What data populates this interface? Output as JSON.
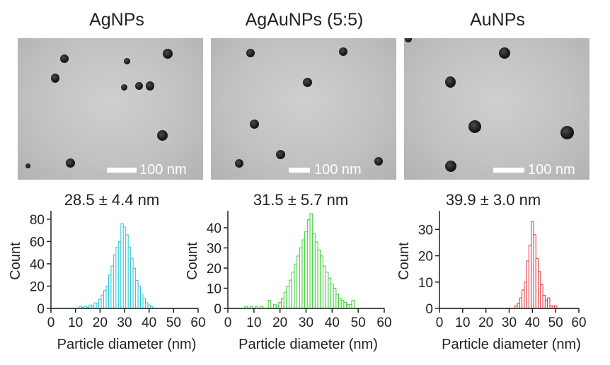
{
  "panels": [
    {
      "title": "AgNPs",
      "scale_label": "100 nm",
      "stat": "28.5 ± 4.4 nm",
      "color": "#2fc6d6"
    },
    {
      "title": "AgAuNPs (5:5)",
      "scale_label": "100 nm",
      "stat": "31.5 ± 5.7 nm",
      "color": "#3fce3a"
    },
    {
      "title": "AuNPs",
      "scale_label": "100 nm",
      "stat": "39.9 ± 3.0 nm",
      "color": "#e0323c"
    }
  ],
  "chart_data": [
    {
      "type": "bar",
      "xlabel": "Particle diameter (nm)",
      "ylabel": "Count",
      "xlim": [
        0,
        60
      ],
      "xticks": [
        0,
        10,
        20,
        30,
        40,
        50,
        60
      ],
      "ylim": [
        0,
        85
      ],
      "yticks": [
        0,
        20,
        40,
        60,
        80
      ],
      "bin_width": 1,
      "x": [
        12,
        13,
        14,
        15,
        16,
        17,
        18,
        19,
        20,
        21,
        22,
        23,
        24,
        25,
        26,
        27,
        28,
        29,
        30,
        31,
        32,
        33,
        34,
        35,
        36,
        37,
        38,
        39,
        40,
        41
      ],
      "values": [
        2,
        1,
        2,
        1,
        3,
        2,
        5,
        4,
        8,
        12,
        16,
        20,
        30,
        38,
        48,
        55,
        60,
        76,
        73,
        66,
        55,
        45,
        36,
        25,
        20,
        13,
        9,
        5,
        3,
        2
      ]
    },
    {
      "type": "bar",
      "xlabel": "Particle diameter (nm)",
      "ylabel": "Count",
      "xlim": [
        0,
        60
      ],
      "xticks": [
        0,
        10,
        20,
        30,
        40,
        50,
        60
      ],
      "ylim": [
        0,
        47
      ],
      "yticks": [
        0,
        10,
        20,
        30,
        40
      ],
      "bin_width": 1,
      "x": [
        7,
        9,
        11,
        13,
        16,
        18,
        19,
        20,
        21,
        22,
        23,
        24,
        25,
        26,
        27,
        28,
        29,
        30,
        31,
        32,
        33,
        34,
        35,
        36,
        37,
        38,
        39,
        40,
        41,
        42,
        43,
        44,
        45,
        46,
        47,
        48
      ],
      "values": [
        1,
        1,
        1,
        1,
        4,
        2,
        1,
        3,
        5,
        8,
        11,
        14,
        18,
        22,
        26,
        30,
        34,
        38,
        44,
        47,
        37,
        33,
        29,
        26,
        21,
        18,
        15,
        12,
        10,
        7,
        5,
        4,
        3,
        2,
        2,
        4
      ]
    },
    {
      "type": "bar",
      "xlabel": "Particle diameter (nm)",
      "ylabel": "Count",
      "xlim": [
        0,
        60
      ],
      "xticks": [
        0,
        10,
        20,
        30,
        40,
        50,
        60
      ],
      "ylim": [
        0,
        36
      ],
      "yticks": [
        0,
        10,
        20,
        30
      ],
      "bin_width": 1,
      "x": [
        33,
        34,
        35,
        36,
        37,
        38,
        39,
        40,
        41,
        42,
        43,
        44,
        45,
        46,
        47,
        48,
        49,
        50
      ],
      "values": [
        1,
        2,
        4,
        7,
        10,
        18,
        24,
        33,
        28,
        19,
        14,
        9,
        5,
        3,
        4,
        1,
        1,
        1
      ]
    }
  ]
}
